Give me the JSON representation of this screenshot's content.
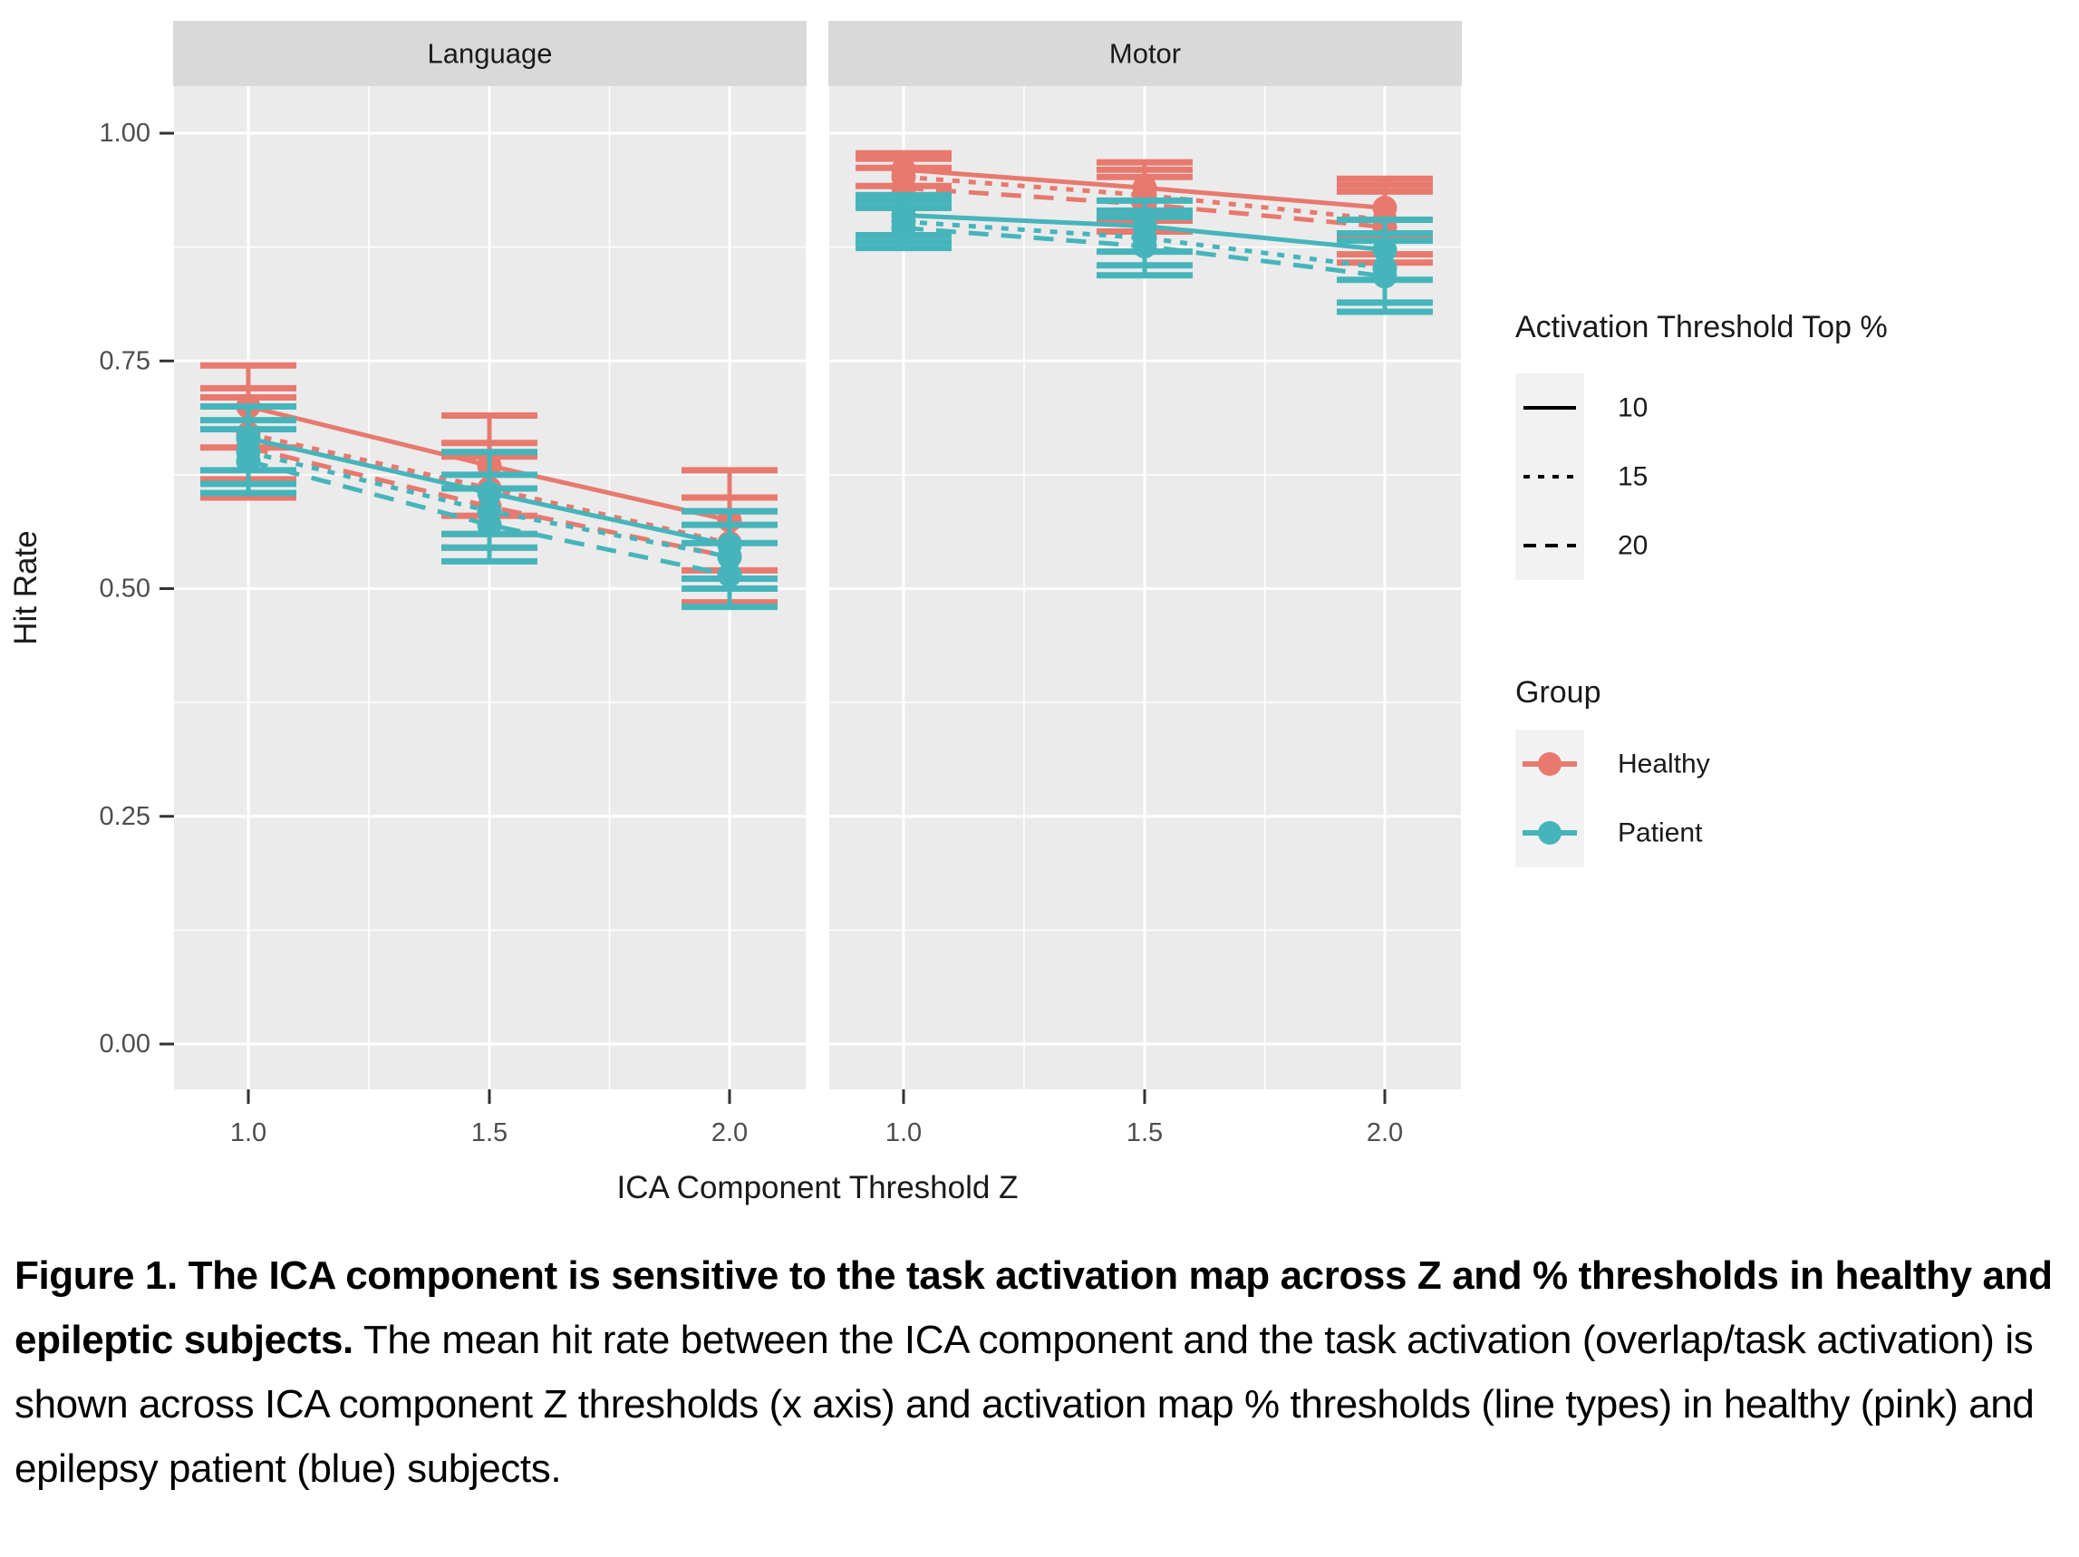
{
  "caption": {
    "bold": "Figure 1. The ICA component is sensitive to the task activation map across Z and % thresholds in healthy and epileptic subjects.",
    "regular": " The mean hit rate between the ICA component and the task activation (overlap/task activation) is shown across ICA component Z thresholds (x axis) and activation map % thresholds (line types) in healthy (pink) and epilepsy patient (blue) subjects."
  },
  "chart_data": {
    "type": "line",
    "facets": [
      "Language",
      "Motor"
    ],
    "x": [
      1.0,
      1.5,
      2.0
    ],
    "xticks": [
      "1.0",
      "1.5",
      "2.0"
    ],
    "yticks": [
      "0.00",
      "0.25",
      "0.50",
      "0.75",
      "1.00"
    ],
    "ytick_values": [
      0.0,
      0.25,
      0.5,
      0.75,
      1.0
    ],
    "ylim": [
      -0.05,
      1.05
    ],
    "xlabel": "ICA Component Threshold Z",
    "ylabel": "Hit Rate",
    "grid": true,
    "legend_position": "right",
    "colors": {
      "healthy": "#E8796E",
      "patient": "#45B5BB",
      "panel_bg": "#EBEBEB",
      "strip_bg": "#D9D9D9",
      "grid": "#FFFFFF",
      "axis_text": "#4D4D4D",
      "title_text": "#1A1A1A",
      "legend_key_bg": "#F2F2F2"
    },
    "linetype_legend": {
      "title": "Activation Threshold Top %",
      "entries": [
        {
          "label": "10",
          "style": "solid"
        },
        {
          "label": "15",
          "style": "dotted"
        },
        {
          "label": "20",
          "style": "dashed"
        }
      ]
    },
    "group_legend": {
      "title": "Group",
      "entries": [
        {
          "label": "Healthy",
          "color": "#E8796E"
        },
        {
          "label": "Patient",
          "color": "#45B5BB"
        }
      ]
    },
    "series": [
      {
        "facet": "Language",
        "group": "Healthy",
        "threshold": "10",
        "style": "solid",
        "color": "#E8796E",
        "means": [
          0.7,
          0.635,
          0.575
        ],
        "upper": [
          0.745,
          0.69,
          0.63
        ],
        "lower": [
          0.655,
          0.58,
          0.52
        ]
      },
      {
        "facet": "Language",
        "group": "Healthy",
        "threshold": "15",
        "style": "dotted",
        "color": "#E8796E",
        "means": [
          0.67,
          0.61,
          0.55
        ],
        "upper": [
          0.72,
          0.66,
          0.6
        ],
        "lower": [
          0.62,
          0.56,
          0.5
        ]
      },
      {
        "facet": "Language",
        "group": "Healthy",
        "threshold": "20",
        "style": "dashed",
        "color": "#E8796E",
        "means": [
          0.655,
          0.59,
          0.535
        ],
        "upper": [
          0.71,
          0.645,
          0.585
        ],
        "lower": [
          0.6,
          0.545,
          0.485
        ]
      },
      {
        "facet": "Language",
        "group": "Patient",
        "threshold": "10",
        "style": "solid",
        "color": "#45B5BB",
        "means": [
          0.665,
          0.605,
          0.548
        ],
        "upper": [
          0.7,
          0.65,
          0.585
        ],
        "lower": [
          0.63,
          0.56,
          0.511
        ]
      },
      {
        "facet": "Language",
        "group": "Patient",
        "threshold": "15",
        "style": "dotted",
        "color": "#45B5BB",
        "means": [
          0.65,
          0.585,
          0.535
        ],
        "upper": [
          0.685,
          0.625,
          0.57
        ],
        "lower": [
          0.615,
          0.545,
          0.5
        ]
      },
      {
        "facet": "Language",
        "group": "Patient",
        "threshold": "20",
        "style": "dashed",
        "color": "#45B5BB",
        "means": [
          0.64,
          0.57,
          0.515
        ],
        "upper": [
          0.675,
          0.61,
          0.55
        ],
        "lower": [
          0.605,
          0.53,
          0.48
        ]
      },
      {
        "facet": "Motor",
        "group": "Healthy",
        "threshold": "10",
        "style": "solid",
        "color": "#E8796E",
        "means": [
          0.96,
          0.94,
          0.918
        ],
        "upper": [
          0.978,
          0.968,
          0.95
        ],
        "lower": [
          0.942,
          0.912,
          0.886
        ]
      },
      {
        "facet": "Motor",
        "group": "Healthy",
        "threshold": "15",
        "style": "dotted",
        "color": "#E8796E",
        "means": [
          0.952,
          0.932,
          0.905
        ],
        "upper": [
          0.972,
          0.96,
          0.943
        ],
        "lower": [
          0.932,
          0.904,
          0.867
        ]
      },
      {
        "facet": "Motor",
        "group": "Healthy",
        "threshold": "20",
        "style": "dashed",
        "color": "#E8796E",
        "means": [
          0.94,
          0.922,
          0.897
        ],
        "upper": [
          0.962,
          0.952,
          0.936
        ],
        "lower": [
          0.918,
          0.892,
          0.858
        ]
      },
      {
        "facet": "Motor",
        "group": "Patient",
        "threshold": "10",
        "style": "solid",
        "color": "#45B5BB",
        "means": [
          0.91,
          0.898,
          0.872
        ],
        "upper": [
          0.932,
          0.926,
          0.905
        ],
        "lower": [
          0.888,
          0.87,
          0.839
        ]
      },
      {
        "facet": "Motor",
        "group": "Patient",
        "threshold": "15",
        "style": "dotted",
        "color": "#45B5BB",
        "means": [
          0.903,
          0.885,
          0.852
        ],
        "upper": [
          0.925,
          0.915,
          0.89
        ],
        "lower": [
          0.881,
          0.855,
          0.814
        ]
      },
      {
        "facet": "Motor",
        "group": "Patient",
        "threshold": "20",
        "style": "dashed",
        "color": "#45B5BB",
        "means": [
          0.896,
          0.876,
          0.843
        ],
        "upper": [
          0.918,
          0.908,
          0.882
        ],
        "lower": [
          0.874,
          0.844,
          0.804
        ]
      }
    ]
  }
}
